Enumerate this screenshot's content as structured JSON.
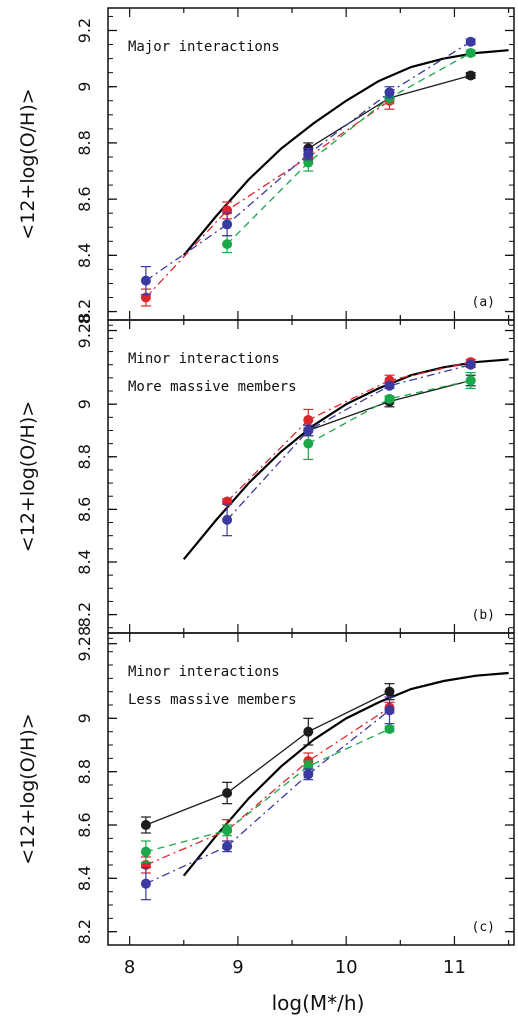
{
  "xlabel": "log(M*/h)",
  "colors": {
    "black": "#1c1c1c",
    "red": "#e0242c",
    "green": "#1aa84a",
    "blue": "#3a3aa0",
    "fit": "#000000"
  },
  "chart_data": [
    {
      "type": "line",
      "panel_label": "(a)",
      "annotations": [
        "Major interactions"
      ],
      "ylabel": "<12+log(O/H)>",
      "xlim": [
        7.8,
        11.55
      ],
      "ylim": [
        8.17,
        9.28
      ],
      "yticks": [
        8.2,
        8.4,
        8.6,
        8.8,
        9,
        9.2
      ],
      "yticklabels": [
        "8.2",
        "8.4",
        "8.6",
        "8.8",
        "9",
        "9.2"
      ],
      "fit_curve": {
        "x": [
          8.5,
          8.8,
          9.1,
          9.4,
          9.7,
          10.0,
          10.3,
          10.6,
          10.9,
          11.2,
          11.5
        ],
        "y": [
          8.4,
          8.54,
          8.67,
          8.78,
          8.87,
          8.95,
          9.02,
          9.07,
          9.1,
          9.12,
          9.13
        ]
      },
      "series": [
        {
          "color": "black",
          "style": "solid",
          "x": [
            9.65,
            10.4,
            11.15
          ],
          "y": [
            8.78,
            8.96,
            9.04
          ],
          "err": [
            0.02,
            0.02,
            0.01
          ]
        },
        {
          "color": "red",
          "style": "dashdot",
          "x": [
            8.15,
            8.9,
            9.65,
            10.4
          ],
          "y": [
            8.25,
            8.56,
            8.75,
            8.95
          ],
          "err": [
            0.03,
            0.03,
            0.02,
            0.03
          ]
        },
        {
          "color": "green",
          "style": "dashed",
          "x": [
            8.9,
            9.65,
            10.4,
            11.15
          ],
          "y": [
            8.44,
            8.73,
            8.96,
            9.12
          ],
          "err": [
            0.03,
            0.03,
            0.02,
            0.01
          ]
        },
        {
          "color": "blue",
          "style": "dashdot",
          "x": [
            8.15,
            8.9,
            9.65,
            10.4,
            11.15
          ],
          "y": [
            8.31,
            8.51,
            8.76,
            8.98,
            9.16
          ],
          "err": [
            0.05,
            0.04,
            0.02,
            0.02,
            0.01
          ]
        }
      ]
    },
    {
      "type": "line",
      "panel_label": "(b)",
      "annotations": [
        "Minor interactions",
        "More massive members"
      ],
      "ylabel": "<12+log(O/H)>",
      "xlim": [
        7.8,
        11.55
      ],
      "ylim": [
        8.13,
        9.32
      ],
      "yticks": [
        8.2,
        8.4,
        8.6,
        8.8,
        9,
        9.28
      ],
      "yticklabels": [
        "8.2",
        "8.4",
        "8.6",
        "8.8",
        "9",
        "9.28"
      ],
      "fit_curve": {
        "x": [
          8.5,
          8.8,
          9.1,
          9.4,
          9.7,
          10.0,
          10.3,
          10.6,
          10.9,
          11.2,
          11.5
        ],
        "y": [
          8.41,
          8.56,
          8.7,
          8.82,
          8.92,
          9.0,
          9.06,
          9.11,
          9.14,
          9.16,
          9.17
        ]
      },
      "series": [
        {
          "color": "black",
          "style": "solid",
          "x": [
            9.65,
            10.4,
            11.15
          ],
          "y": [
            8.9,
            9.01,
            9.09
          ],
          "err": [
            0.02,
            0.02,
            0.02
          ]
        },
        {
          "color": "red",
          "style": "dashdot",
          "x": [
            8.9,
            9.65,
            10.4,
            11.15
          ],
          "y": [
            8.63,
            8.94,
            9.09,
            9.16
          ],
          "err": [
            0.01,
            0.04,
            0.02,
            0.01
          ]
        },
        {
          "color": "green",
          "style": "dashed",
          "x": [
            9.65,
            10.4,
            11.15
          ],
          "y": [
            8.85,
            9.02,
            9.09
          ],
          "err": [
            0.06,
            0.01,
            0.03
          ]
        },
        {
          "color": "blue",
          "style": "dashdot",
          "x": [
            8.9,
            9.65,
            10.4,
            11.15
          ],
          "y": [
            8.56,
            8.9,
            9.07,
            9.15
          ],
          "err": [
            0.06,
            0.02,
            0.01,
            0.01
          ]
        }
      ]
    },
    {
      "type": "line",
      "panel_label": "(c)",
      "annotations": [
        "Minor interactions",
        "Less massive members"
      ],
      "ylabel": "<12+log(O/H)>",
      "xlim": [
        7.8,
        11.55
      ],
      "ylim": [
        8.15,
        9.32
      ],
      "yticks": [
        8.2,
        8.4,
        8.6,
        8.8,
        9,
        9.28
      ],
      "yticklabels": [
        "8.2",
        "8.4",
        "8.6",
        "8.8",
        "9",
        "9.28"
      ],
      "xticks": [
        8,
        9,
        10,
        11
      ],
      "xticklabels": [
        "8",
        "9",
        "10",
        "11"
      ],
      "fit_curve": {
        "x": [
          8.5,
          8.8,
          9.1,
          9.4,
          9.7,
          10.0,
          10.3,
          10.6,
          10.9,
          11.2,
          11.5
        ],
        "y": [
          8.41,
          8.56,
          8.7,
          8.82,
          8.92,
          9.0,
          9.06,
          9.11,
          9.14,
          9.16,
          9.17
        ]
      },
      "series": [
        {
          "color": "black",
          "style": "solid",
          "x": [
            8.15,
            8.9,
            9.65,
            10.4
          ],
          "y": [
            8.6,
            8.72,
            8.95,
            9.1
          ],
          "err": [
            0.03,
            0.04,
            0.05,
            0.03
          ]
        },
        {
          "color": "red",
          "style": "dashdot",
          "x": [
            8.15,
            8.9,
            9.65,
            10.4
          ],
          "y": [
            8.45,
            8.58,
            8.84,
            9.04
          ],
          "err": [
            0.03,
            0.04,
            0.03,
            0.02
          ]
        },
        {
          "color": "green",
          "style": "dashed",
          "x": [
            8.15,
            8.9,
            9.65,
            10.4
          ],
          "y": [
            8.5,
            8.58,
            8.82,
            8.96
          ],
          "err": [
            0.04,
            0.02,
            0.02,
            0.01
          ]
        },
        {
          "color": "blue",
          "style": "dashdot",
          "x": [
            8.15,
            8.9,
            9.65,
            10.4
          ],
          "y": [
            8.38,
            8.52,
            8.79,
            9.03
          ],
          "err": [
            0.06,
            0.02,
            0.02,
            0.05
          ]
        }
      ]
    }
  ]
}
